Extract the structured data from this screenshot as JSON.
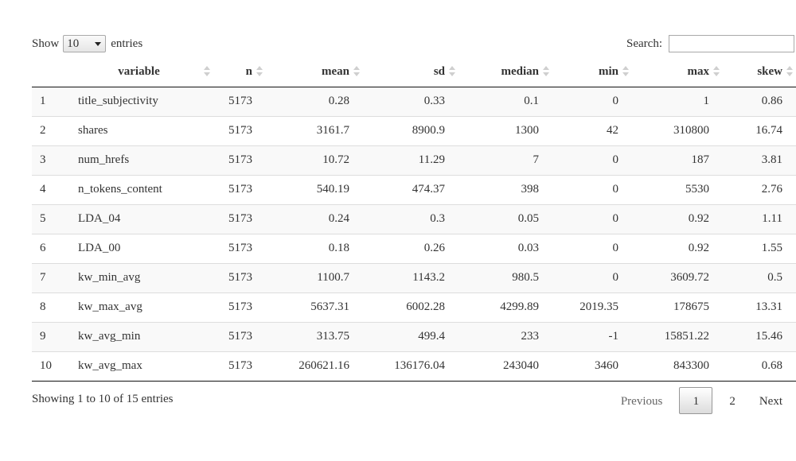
{
  "length_menu": {
    "show_label": "Show",
    "selected": "10",
    "entries_label": "entries"
  },
  "search": {
    "label": "Search:",
    "value": "",
    "placeholder": ""
  },
  "table": {
    "columns": [
      "",
      "variable",
      "n",
      "mean",
      "sd",
      "median",
      "min",
      "max",
      "skew"
    ],
    "rows": [
      [
        "1",
        "title_subjectivity",
        "5173",
        "0.28",
        "0.33",
        "0.1",
        "0",
        "1",
        "0.86"
      ],
      [
        "2",
        "shares",
        "5173",
        "3161.7",
        "8900.9",
        "1300",
        "42",
        "310800",
        "16.74"
      ],
      [
        "3",
        "num_hrefs",
        "5173",
        "10.72",
        "11.29",
        "7",
        "0",
        "187",
        "3.81"
      ],
      [
        "4",
        "n_tokens_content",
        "5173",
        "540.19",
        "474.37",
        "398",
        "0",
        "5530",
        "2.76"
      ],
      [
        "5",
        "LDA_04",
        "5173",
        "0.24",
        "0.3",
        "0.05",
        "0",
        "0.92",
        "1.11"
      ],
      [
        "6",
        "LDA_00",
        "5173",
        "0.18",
        "0.26",
        "0.03",
        "0",
        "0.92",
        "1.55"
      ],
      [
        "7",
        "kw_min_avg",
        "5173",
        "1100.7",
        "1143.2",
        "980.5",
        "0",
        "3609.72",
        "0.5"
      ],
      [
        "8",
        "kw_max_avg",
        "5173",
        "5637.31",
        "6002.28",
        "4299.89",
        "2019.35",
        "178675",
        "13.31"
      ],
      [
        "9",
        "kw_avg_min",
        "5173",
        "313.75",
        "499.4",
        "233",
        "-1",
        "15851.22",
        "15.46"
      ],
      [
        "10",
        "kw_avg_max",
        "5173",
        "260621.16",
        "136176.04",
        "243040",
        "3460",
        "843300",
        "0.68"
      ]
    ]
  },
  "info": "Showing 1 to 10 of 15 entries",
  "pagination": {
    "previous": "Previous",
    "pages": [
      "1",
      "2"
    ],
    "current": "1",
    "next": "Next"
  }
}
